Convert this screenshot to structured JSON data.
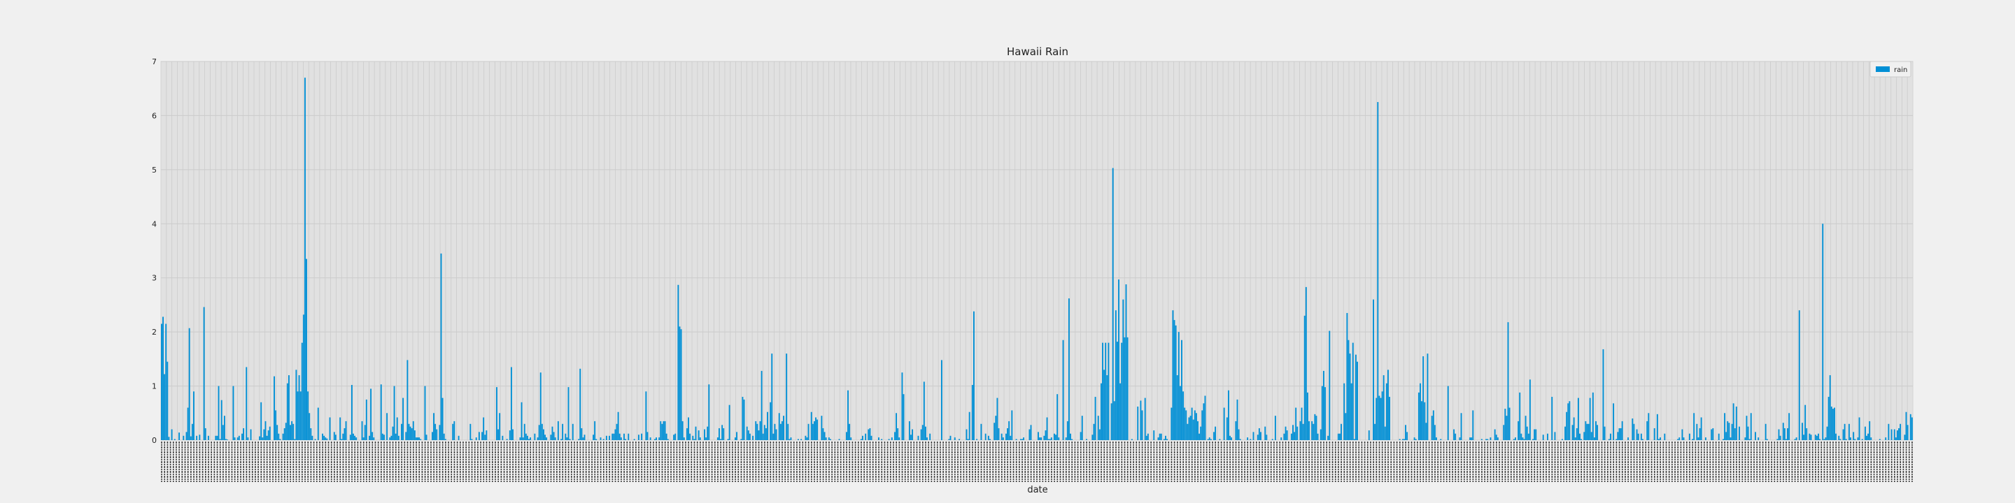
{
  "chart_data": {
    "type": "bar",
    "title": "Hawaii Rain",
    "xlabel": "date",
    "ylabel": "",
    "ylim": [
      0,
      7
    ],
    "yticks": [
      0,
      1,
      2,
      3,
      4,
      5,
      6,
      7
    ],
    "grid": true,
    "legend_position": "top-right",
    "x_tick_labels_legible": false,
    "series": [
      {
        "name": "rain",
        "color": "#008fd5",
        "values": [
          2.15,
          2.28,
          1.22,
          2.15,
          1.45,
          0.06,
          0.0,
          0.2,
          0.0,
          0.02,
          0.0,
          0.0,
          0.14,
          0.0,
          0.0,
          0.08,
          0.0,
          0.15,
          0.6,
          2.07,
          0.07,
          0.3,
          0.9,
          0.0,
          0.08,
          0.0,
          0.1,
          0.0,
          0.0,
          2.46,
          0.22,
          0.0,
          0.08,
          0.0,
          0.0,
          0.0,
          0.0,
          0.08,
          0.08,
          1.0,
          0.02,
          0.74,
          0.28,
          0.45,
          0.02,
          0.01,
          0.0,
          0.0,
          0.0,
          1.0,
          0.05,
          0.0,
          0.05,
          0.08,
          0.0,
          0.12,
          0.22,
          0.0,
          1.35,
          0.05,
          0.0,
          0.2,
          0.0,
          0.0,
          0.0,
          0.0,
          0.0,
          0.07,
          0.7,
          0.05,
          0.2,
          0.35,
          0.08,
          0.18,
          0.25,
          0.0,
          0.0,
          1.18,
          0.55,
          0.28,
          0.12,
          0.02,
          0.0,
          0.12,
          0.22,
          0.32,
          1.05,
          1.2,
          0.28,
          0.35,
          0.3,
          0.02,
          1.3,
          0.9,
          1.2,
          0.9,
          1.8,
          2.32,
          6.7,
          3.35,
          0.9,
          0.5,
          0.22,
          0.08,
          0.0,
          0.02,
          0.0,
          0.6,
          0.0,
          0.0,
          0.12,
          0.08,
          0.05,
          0.03,
          0.0,
          0.42,
          0.0,
          0.0,
          0.15,
          0.1,
          0.0,
          0.0,
          0.42,
          0.02,
          0.12,
          0.22,
          0.35,
          0.0,
          0.0,
          0.1,
          1.02,
          0.12,
          0.08,
          0.05,
          0.0,
          0.0,
          0.0,
          0.35,
          0.05,
          0.28,
          0.75,
          0.0,
          0.08,
          0.95,
          0.15,
          0.05,
          0.0,
          0.0,
          0.0,
          0.0,
          1.03,
          0.12,
          0.1,
          0.0,
          0.5,
          0.0,
          0.05,
          0.08,
          0.25,
          1.0,
          0.12,
          0.42,
          0.08,
          0.0,
          0.3,
          0.78,
          0.0,
          0.15,
          1.48,
          0.3,
          0.25,
          0.22,
          0.35,
          0.18,
          0.05,
          0.05,
          0.05,
          0.02,
          0.0,
          0.0,
          1.0,
          0.1,
          0.0,
          0.0,
          0.0,
          0.15,
          0.5,
          0.3,
          0.2,
          0.0,
          0.28,
          3.45,
          0.78,
          0.12,
          0.02,
          0.0,
          0.0,
          0.0,
          0.0,
          0.3,
          0.35,
          0.0,
          0.0,
          0.08,
          0.0,
          0.0,
          0.0,
          0.0,
          0.0,
          0.0,
          0.0,
          0.3,
          0.02,
          0.0,
          0.0,
          0.05,
          0.0,
          0.15,
          0.0,
          0.15,
          0.42,
          0.1,
          0.18,
          0.0,
          0.0,
          0.0,
          0.0,
          0.0,
          0.0,
          0.98,
          0.2,
          0.5,
          0.0,
          0.08,
          0.0,
          0.0,
          0.02,
          0.0,
          0.18,
          1.35,
          0.2,
          0.0,
          0.0,
          0.0,
          0.0,
          0.05,
          0.7,
          0.05,
          0.3,
          0.12,
          0.08,
          0.02,
          0.05,
          0.0,
          0.0,
          0.12,
          0.0,
          0.05,
          0.28,
          1.25,
          0.3,
          0.2,
          0.1,
          0.05,
          0.0,
          0.0,
          0.1,
          0.25,
          0.15,
          0.05,
          0.0,
          0.35,
          0.0,
          0.02,
          0.3,
          0.0,
          0.12,
          0.05,
          0.98,
          0.02,
          0.0,
          0.3,
          0.0,
          0.0,
          0.0,
          0.02,
          1.32,
          0.22,
          0.05,
          0.1,
          0.0,
          0.0,
          0.0,
          0.0,
          0.0,
          0.1,
          0.35,
          0.02,
          0.0,
          0.0,
          0.05,
          0.0,
          0.02,
          0.0,
          0.08,
          0.0,
          0.08,
          0.0,
          0.12,
          0.12,
          0.2,
          0.3,
          0.52,
          0.12,
          0.05,
          0.0,
          0.12,
          0.02,
          0.0,
          0.12,
          0.0,
          0.0,
          0.0,
          0.02,
          0.0,
          0.0,
          0.1,
          0.0,
          0.12,
          0.0,
          0.0,
          0.9,
          0.15,
          0.0,
          0.05,
          0.0,
          0.0,
          0.02,
          0.05,
          0.0,
          0.05,
          0.35,
          0.3,
          0.35,
          0.35,
          0.12,
          0.02,
          0.0,
          0.0,
          0.0,
          0.1,
          0.12,
          0.0,
          2.87,
          2.1,
          2.05,
          0.35,
          0.05,
          0.0,
          0.22,
          0.42,
          0.12,
          0.0,
          0.08,
          0.02,
          0.25,
          0.0,
          0.18,
          0.05,
          0.0,
          0.0,
          0.2,
          0.05,
          0.25,
          1.03,
          0.0,
          0.0,
          0.0,
          0.0,
          0.0,
          0.05,
          0.22,
          0.02,
          0.28,
          0.22,
          0.0,
          0.0,
          0.02,
          0.65,
          0.0,
          0.0,
          0.0,
          0.05,
          0.15,
          0.0,
          0.0,
          0.02,
          0.8,
          0.75,
          0.0,
          0.25,
          0.18,
          0.12,
          0.0,
          0.08,
          0.0,
          0.35,
          0.3,
          0.18,
          0.35,
          1.28,
          0.12,
          0.28,
          0.22,
          0.52,
          0.0,
          0.7,
          1.6,
          0.12,
          0.3,
          0.2,
          0.0,
          0.5,
          0.3,
          0.35,
          0.45,
          0.0,
          1.6,
          0.3,
          0.02,
          0.05,
          0.0,
          0.0,
          0.0,
          0.0,
          0.02,
          0.0,
          0.02,
          0.0,
          0.0,
          0.08,
          0.05,
          0.3,
          0.0,
          0.52,
          0.3,
          0.35,
          0.42,
          0.38,
          0.0,
          0.0,
          0.45,
          0.22,
          0.15,
          0.05,
          0.0,
          0.05,
          0.02,
          0.0,
          0.0,
          0.0,
          0.0,
          0.0,
          0.02,
          0.0,
          0.0,
          0.0,
          0.0,
          0.15,
          0.92,
          0.3,
          0.05,
          0.0,
          0.0,
          0.0,
          0.0,
          0.0,
          0.0,
          0.02,
          0.08,
          0.0,
          0.12,
          0.0,
          0.2,
          0.22,
          0.08,
          0.0,
          0.0,
          0.0,
          0.0,
          0.05,
          0.0,
          0.02,
          0.0,
          0.0,
          0.0,
          0.0,
          0.02,
          0.0,
          0.05,
          0.0,
          0.15,
          0.5,
          0.22,
          0.05,
          0.0,
          1.25,
          0.85,
          0.0,
          0.0,
          0.0,
          0.35,
          0.1,
          0.2,
          0.0,
          0.0,
          0.0,
          0.08,
          0.0,
          0.2,
          0.28,
          1.08,
          0.25,
          0.05,
          0.0,
          0.12,
          0.0,
          0.0,
          0.0,
          0.0,
          0.0,
          0.0,
          0.0,
          1.48,
          0.0,
          0.0,
          0.0,
          0.0,
          0.02,
          0.08,
          0.0,
          0.0,
          0.05,
          0.0,
          0.0,
          0.02,
          0.0,
          0.0,
          0.0,
          0.0,
          0.2,
          0.02,
          0.52,
          0.0,
          1.02,
          2.38,
          0.0,
          0.02,
          0.0,
          0.0,
          0.3,
          0.0,
          0.0,
          0.12,
          0.0,
          0.08,
          0.02,
          0.0,
          0.0,
          0.32,
          0.45,
          0.78,
          0.22,
          0.0,
          0.12,
          0.05,
          0.0,
          0.12,
          0.22,
          0.35,
          0.08,
          0.55,
          0.0,
          0.0,
          0.02,
          0.0,
          0.0,
          0.02,
          0.02,
          0.05,
          0.0,
          0.0,
          0.0,
          0.2,
          0.28,
          0.0,
          0.0,
          0.0,
          0.0,
          0.15,
          0.05,
          0.05,
          0.0,
          0.08,
          0.18,
          0.42,
          0.02,
          0.02,
          0.05,
          0.0,
          0.12,
          0.1,
          0.85,
          0.05,
          0.0,
          0.0,
          1.85,
          0.0,
          0.05,
          0.35,
          2.62,
          0.12,
          0.02,
          0.0,
          0.0,
          0.0,
          0.0,
          0.0,
          0.15,
          0.45,
          0.0,
          0.0,
          0.02,
          0.0,
          0.0,
          0.0,
          0.1,
          0.3,
          0.8,
          0.0,
          0.45,
          0.2,
          1.05,
          1.8,
          1.3,
          1.8,
          1.2,
          1.8,
          0.0,
          0.68,
          5.03,
          0.72,
          2.4,
          1.82,
          2.97,
          1.05,
          1.8,
          2.6,
          1.9,
          2.88,
          1.9,
          0.0,
          0.0,
          0.02,
          0.0,
          0.0,
          0.0,
          0.62,
          0.0,
          0.73,
          0.55,
          0.0,
          0.78,
          0.08,
          0.12,
          0.0,
          0.0,
          0.0,
          0.18,
          0.0,
          0.0,
          0.05,
          0.12,
          0.12,
          0.0,
          0.02,
          0.08,
          0.02,
          0.0,
          0.0,
          0.6,
          2.4,
          2.22,
          2.12,
          1.2,
          2.0,
          1.0,
          1.85,
          0.9,
          0.6,
          0.55,
          0.3,
          0.42,
          0.45,
          0.6,
          0.38,
          0.55,
          0.5,
          0.35,
          0.12,
          0.25,
          0.55,
          0.68,
          0.82,
          0.0,
          0.02,
          0.05,
          0.02,
          0.0,
          0.15,
          0.25,
          0.0,
          0.0,
          0.02,
          0.0,
          0.0,
          0.6,
          0.0,
          0.42,
          0.92,
          0.08,
          0.05,
          0.0,
          0.0,
          0.35,
          0.75,
          0.2,
          0.02,
          0.0,
          0.0,
          0.0,
          0.0,
          0.05,
          0.0,
          0.02,
          0.0,
          0.15,
          0.0,
          0.0,
          0.1,
          0.22,
          0.15,
          0.0,
          0.0,
          0.25,
          0.1,
          0.0,
          0.0,
          0.0,
          0.02,
          0.0,
          0.45,
          0.0,
          0.0,
          0.0,
          0.05,
          0.0,
          0.12,
          0.25,
          0.18,
          0.0,
          0.0,
          0.12,
          0.28,
          0.15,
          0.6,
          0.25,
          0.0,
          0.35,
          0.6,
          0.3,
          2.3,
          2.83,
          0.88,
          0.35,
          0.0,
          0.35,
          0.3,
          0.48,
          0.45,
          0.12,
          0.0,
          0.2,
          1.0,
          1.28,
          0.98,
          0.0,
          0.08,
          2.02,
          0.0,
          0.0,
          0.0,
          0.0,
          0.0,
          0.12,
          0.12,
          0.3,
          0.0,
          1.05,
          0.5,
          2.35,
          1.85,
          1.6,
          1.05,
          1.8,
          0.02,
          1.58,
          1.45,
          0.0,
          0.0,
          0.0,
          0.0,
          0.0,
          0.0,
          0.0,
          0.18,
          0.0,
          0.0,
          2.6,
          0.3,
          0.78,
          6.25,
          0.82,
          0.78,
          0.9,
          1.2,
          0.25,
          1.05,
          1.3,
          0.8,
          0.0,
          0.0,
          0.0,
          0.0,
          0.0,
          0.0,
          0.02,
          0.0,
          0.02,
          0.02,
          0.28,
          0.15,
          0.0,
          0.0,
          0.0,
          0.0,
          0.05,
          0.02,
          0.0,
          0.88,
          1.05,
          0.72,
          1.55,
          0.7,
          0.32,
          1.6,
          0.0,
          0.0,
          0.45,
          0.55,
          0.28,
          0.05,
          0.0,
          0.0,
          0.02,
          0.0,
          0.0,
          0.0,
          0.0,
          1.0,
          0.0,
          0.0,
          0.0,
          0.2,
          0.12,
          0.0,
          0.0,
          0.05,
          0.5,
          0.0,
          0.0,
          0.0,
          0.0,
          0.0,
          0.05,
          0.05,
          0.55,
          0.0,
          0.0,
          0.0,
          0.0,
          0.0,
          0.02,
          0.0,
          0.0,
          0.02,
          0.02,
          0.0,
          0.05,
          0.0,
          0.0,
          0.2,
          0.1,
          0.05,
          0.0,
          0.0,
          0.0,
          0.28,
          0.58,
          0.45,
          2.18,
          0.6,
          0.0,
          0.0,
          0.02,
          0.05,
          0.0,
          0.35,
          0.88,
          0.12,
          0.05,
          0.02,
          0.45,
          0.25,
          0.12,
          1.12,
          0.0,
          0.02,
          0.2,
          0.2,
          0.0,
          0.0,
          0.0,
          0.0,
          0.1,
          0.0,
          0.0,
          0.12,
          0.0,
          0.0,
          0.8,
          0.0,
          0.15,
          0.0,
          0.0,
          0.0,
          0.0,
          0.02,
          0.0,
          0.25,
          0.52,
          0.68,
          0.72,
          0.0,
          0.28,
          0.42,
          0.05,
          0.22,
          0.78,
          0.12,
          0.02,
          0.0,
          0.15,
          0.35,
          0.3,
          0.3,
          0.78,
          0.15,
          0.88,
          0.05,
          0.35,
          0.28,
          0.0,
          0.0,
          0.0,
          1.68,
          0.25,
          0.0,
          0.0,
          0.02,
          0.12,
          0.0,
          0.68,
          0.0,
          0.02,
          0.15,
          0.22,
          0.22,
          0.35,
          0.0,
          0.0,
          0.0,
          0.05,
          0.0,
          0.0,
          0.4,
          0.3,
          0.0,
          0.2,
          0.12,
          0.0,
          0.12,
          0.02,
          0.0,
          0.0,
          0.35,
          0.5,
          0.0,
          0.0,
          0.0,
          0.22,
          0.0,
          0.48,
          0.02,
          0.05,
          0.0,
          0.0,
          0.12,
          0.0,
          0.0,
          0.0,
          0.0,
          0.0,
          0.0,
          0.0,
          0.0,
          0.02,
          0.05,
          0.0,
          0.2,
          0.05,
          0.0,
          0.0,
          0.0,
          0.12,
          0.0,
          0.02,
          0.5,
          0.0,
          0.3,
          0.05,
          0.22,
          0.42,
          0.0,
          0.0,
          0.05,
          0.0,
          0.0,
          0.0,
          0.2,
          0.22,
          0.0,
          0.0,
          0.0,
          0.12,
          0.0,
          0.0,
          0.02,
          0.5,
          0.15,
          0.35,
          0.32,
          0.05,
          0.3,
          0.68,
          0.22,
          0.62,
          0.0,
          0.25,
          0.0,
          0.0,
          0.0,
          0.05,
          0.45,
          0.25,
          0.02,
          0.5,
          0.0,
          0.0,
          0.15,
          0.0,
          0.05,
          0.0,
          0.0,
          0.0,
          0.0,
          0.3,
          0.02,
          0.0,
          0.0,
          0.0,
          0.0,
          0.0,
          0.0,
          0.02,
          0.2,
          0.08,
          0.0,
          0.32,
          0.22,
          0.02,
          0.22,
          0.5,
          0.0,
          0.0,
          0.0,
          0.02,
          0.05,
          0.0,
          2.4,
          0.0,
          0.32,
          0.1,
          0.65,
          0.22,
          0.0,
          0.12,
          0.1,
          0.0,
          0.0,
          0.1,
          0.08,
          0.12,
          0.02,
          0.0,
          4.0,
          0.02,
          0.05,
          0.25,
          0.8,
          1.2,
          0.62,
          0.58,
          0.6,
          0.12,
          0.0,
          0.08,
          0.02,
          0.0,
          0.2,
          0.3,
          0.02,
          0.0,
          0.3,
          0.05,
          0.0,
          0.15,
          0.02,
          0.0,
          0.05,
          0.42,
          0.0,
          0.02,
          0.0,
          0.25,
          0.08,
          0.12,
          0.35,
          0.05,
          0.0,
          0.0,
          0.0,
          0.0,
          0.0,
          0.02,
          0.0,
          0.0,
          0.0,
          0.05,
          0.0,
          0.3,
          0.0,
          0.2,
          0.0,
          0.2,
          0.05,
          0.18,
          0.22,
          0.3,
          0.0,
          0.0,
          0.1,
          0.52,
          0.28,
          0.0,
          0.48,
          0.42
        ]
      }
    ]
  }
}
